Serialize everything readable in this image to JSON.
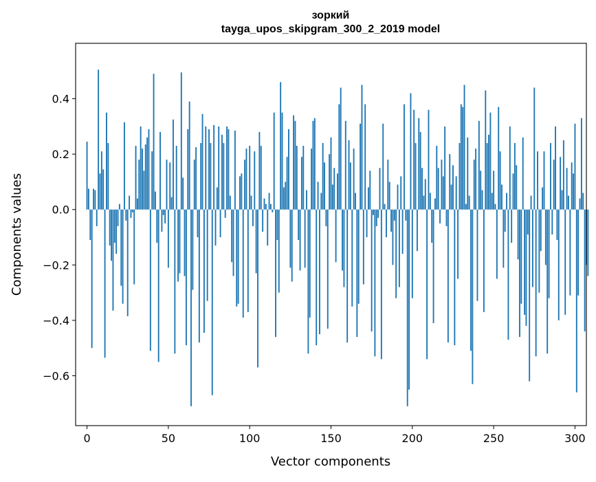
{
  "chart_data": {
    "type": "bar",
    "title_lines": [
      "зоркий",
      "tayga_upos_skipgram_300_2_2019 model"
    ],
    "xlabel": "Vector components",
    "ylabel": "Components values",
    "xlim": [
      -7,
      307
    ],
    "ylim": [
      -0.78,
      0.6
    ],
    "xticks": [
      0,
      50,
      100,
      150,
      200,
      250,
      300
    ],
    "xtick_labels": [
      "0",
      "50",
      "100",
      "150",
      "200",
      "250",
      "300"
    ],
    "yticks": [
      -0.6,
      -0.4,
      -0.2,
      0.0,
      0.2,
      0.4
    ],
    "ytick_labels": [
      "−0.6",
      "−0.4",
      "−0.2",
      "0.0",
      "0.2",
      "0.4"
    ],
    "bar_color": "#1f77b4",
    "values": [
      0.245,
      0.075,
      -0.11,
      -0.5,
      0.075,
      0.07,
      -0.06,
      0.505,
      0.13,
      0.21,
      0.145,
      -0.535,
      0.35,
      0.24,
      -0.13,
      -0.185,
      -0.365,
      -0.12,
      -0.16,
      -0.06,
      0.02,
      -0.275,
      -0.34,
      0.315,
      -0.04,
      -0.385,
      0.05,
      -0.03,
      -0.01,
      -0.27,
      0.23,
      0.04,
      0.18,
      0.3,
      0.22,
      0.14,
      0.235,
      0.26,
      0.29,
      -0.51,
      0.21,
      0.49,
      0.065,
      -0.12,
      -0.55,
      0.28,
      -0.08,
      -0.02,
      -0.05,
      0.18,
      -0.21,
      0.17,
      0.045,
      0.325,
      -0.52,
      0.23,
      -0.26,
      -0.23,
      0.495,
      0.115,
      -0.24,
      -0.49,
      0.29,
      0.39,
      -0.71,
      -0.29,
      0.18,
      0.225,
      -0.1,
      -0.48,
      0.24,
      0.345,
      -0.445,
      0.3,
      -0.33,
      0.29,
      0.24,
      -0.67,
      0.305,
      -0.13,
      0.08,
      0.3,
      -0.1,
      0.27,
      0.24,
      -0.03,
      0.3,
      0.29,
      0.05,
      -0.19,
      -0.24,
      0.285,
      -0.35,
      -0.34,
      0.12,
      0.13,
      -0.39,
      0.18,
      0.22,
      -0.37,
      0.23,
      0.05,
      -0.06,
      0.21,
      -0.23,
      -0.57,
      0.28,
      0.23,
      -0.08,
      0.04,
      0.02,
      -0.13,
      0.06,
      0.02,
      -0.01,
      0.35,
      -0.46,
      -0.11,
      -0.3,
      0.46,
      0.35,
      0.08,
      0.1,
      0.19,
      0.29,
      -0.21,
      -0.26,
      0.34,
      0.32,
      0.23,
      -0.11,
      -0.22,
      0.19,
      0.23,
      -0.21,
      0.07,
      -0.52,
      -0.39,
      0.22,
      0.32,
      0.33,
      -0.49,
      0.1,
      -0.45,
      0.06,
      0.24,
      0.17,
      -0.06,
      -0.43,
      0.2,
      0.26,
      0.09,
      0.15,
      -0.19,
      0.13,
      0.38,
      0.44,
      -0.22,
      -0.28,
      0.32,
      -0.48,
      0.25,
      0.17,
      -0.35,
      0.22,
      0.06,
      -0.46,
      -0.34,
      0.31,
      0.45,
      -0.27,
      0.38,
      -0.1,
      0.08,
      0.14,
      -0.44,
      -0.02,
      -0.53,
      -0.06,
      -0.03,
      0.15,
      -0.54,
      0.31,
      0.02,
      -0.1,
      0.18,
      0.1,
      -0.08,
      -0.2,
      -0.04,
      -0.32,
      0.09,
      -0.28,
      0.12,
      -0.16,
      0.38,
      -0.04,
      -0.71,
      -0.65,
      0.42,
      -0.32,
      0.36,
      0.24,
      -0.15,
      0.33,
      0.28,
      0.15,
      0.05,
      0.11,
      -0.54,
      0.36,
      0.06,
      -0.12,
      -0.41,
      0.04,
      0.23,
      0.15,
      -0.05,
      0.18,
      0.12,
      0.3,
      -0.06,
      -0.48,
      0.2,
      0.09,
      0.16,
      -0.49,
      0.12,
      -0.25,
      0.24,
      0.38,
      0.37,
      0.45,
      0.02,
      0.26,
      0.05,
      -0.51,
      -0.63,
      0.18,
      0.22,
      -0.33,
      0.32,
      0.14,
      0.07,
      -0.37,
      0.43,
      0.24,
      0.27,
      0.35,
      0.06,
      0.14,
      0.02,
      -0.25,
      0.37,
      0.21,
      0.09,
      -0.21,
      -0.08,
      0.06,
      -0.47,
      0.3,
      -0.12,
      0.13,
      0.24,
      0.16,
      -0.18,
      -0.46,
      -0.34,
      0.26,
      -0.38,
      -0.42,
      -0.09,
      -0.62,
      0.05,
      -0.28,
      0.44,
      -0.53,
      0.21,
      -0.3,
      -0.15,
      0.08,
      0.21,
      -0.2,
      -0.52,
      -0.32,
      0.24,
      -0.09,
      0.18,
      0.3,
      -0.11,
      -0.4,
      0.19,
      0.07,
      0.25,
      -0.38,
      0.15,
      0.05,
      -0.31,
      0.17,
      0.13,
      0.31,
      -0.66,
      -0.31,
      0.04,
      0.33,
      0.06,
      -0.44,
      -0.2,
      -0.24
    ]
  }
}
